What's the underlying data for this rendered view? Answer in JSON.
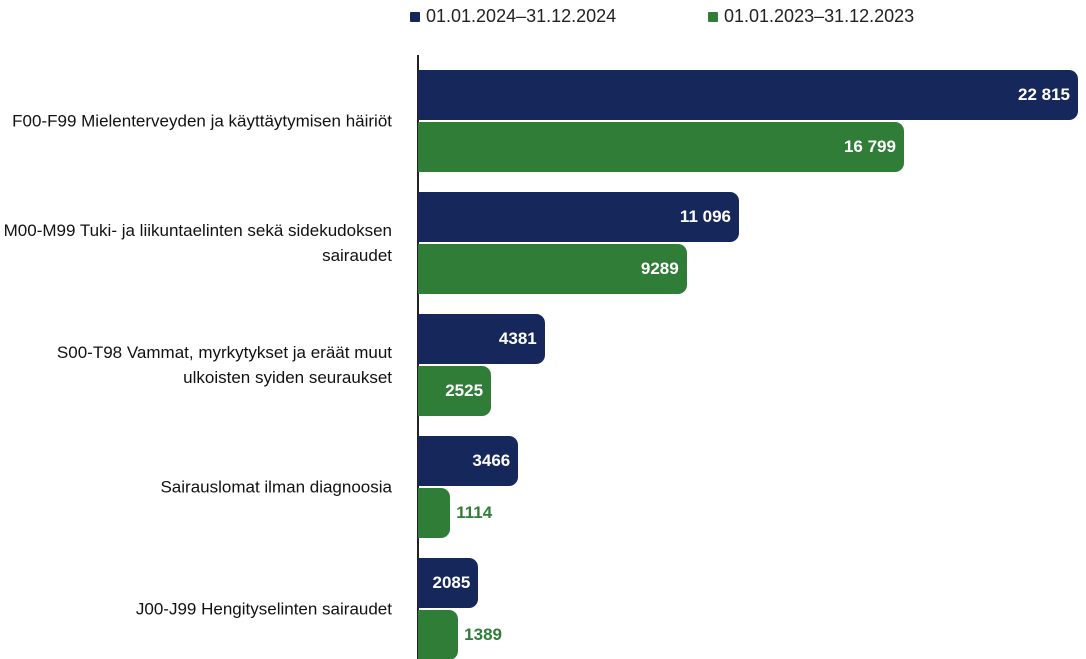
{
  "chart_data": {
    "type": "bar",
    "orientation": "horizontal",
    "categories": [
      "F00-F99 Mielenterveyden ja käyttäytymisen häiriöt",
      "M00-M99 Tuki- ja liikuntaelinten sekä sidekudoksen sairaudet",
      "S00-T98 Vammat, myrkytykset ja eräät muut ulkoisten syiden seuraukset",
      "Sairauslomat ilman diagnoosia",
      "J00-J99 Hengityselinten sairaudet"
    ],
    "series": [
      {
        "name": "01.01.2024–31.12.2024",
        "color": "#15275b",
        "values": [
          22815,
          11096,
          4381,
          3466,
          2085
        ],
        "value_labels": [
          "22 815",
          "11 096",
          "4381",
          "3466",
          "2085"
        ]
      },
      {
        "name": "01.01.2023–31.12.2023",
        "color": "#2f7d37",
        "values": [
          16799,
          9289,
          2525,
          1114,
          1389
        ],
        "value_labels": [
          "16 799",
          "9289",
          "2525",
          "1114",
          "1389"
        ]
      }
    ],
    "legend": "top"
  }
}
